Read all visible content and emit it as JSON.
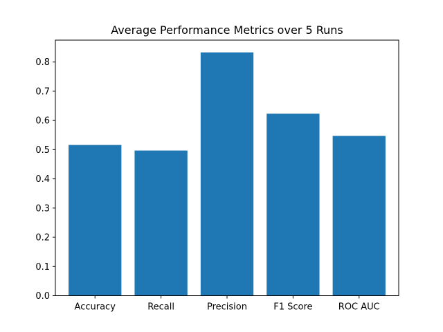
{
  "chart_data": {
    "type": "bar",
    "title": "Average Performance Metrics over 5 Runs",
    "xlabel": "",
    "ylabel": "",
    "categories": [
      "Accuracy",
      "Recall",
      "Precision",
      "F1 Score",
      "ROC AUC"
    ],
    "values": [
      0.516,
      0.497,
      0.833,
      0.623,
      0.547
    ],
    "ylim": [
      0,
      0.875
    ],
    "yticks": [
      0.0,
      0.1,
      0.2,
      0.3,
      0.4,
      0.5,
      0.6,
      0.7,
      0.8
    ],
    "ytick_labels": [
      "0.0",
      "0.1",
      "0.2",
      "0.3",
      "0.4",
      "0.5",
      "0.6",
      "0.7",
      "0.8"
    ],
    "bar_color": "#1f77b4",
    "grid": false,
    "legend": "none"
  }
}
